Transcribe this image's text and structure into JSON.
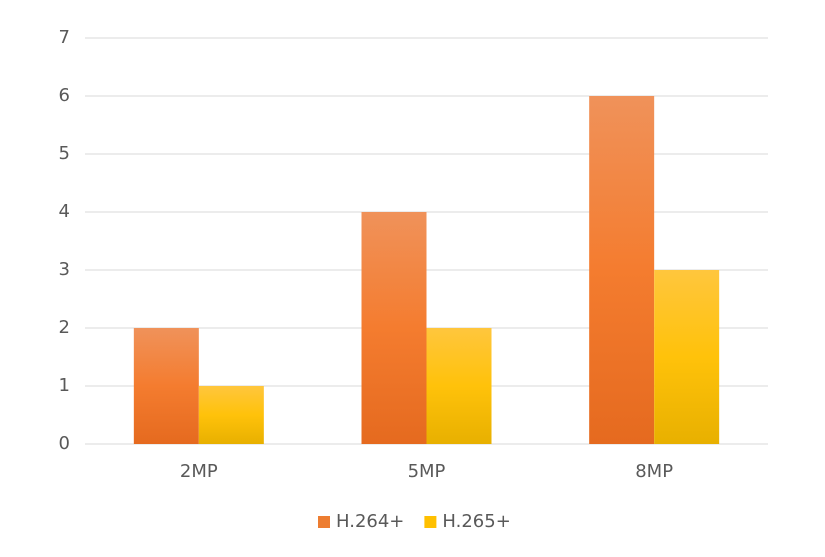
{
  "chart_data": {
    "type": "bar",
    "categories": [
      "2MP",
      "5MP",
      "8MP"
    ],
    "series": [
      {
        "name": "H.264+",
        "color": "#ed7d31",
        "values": [
          2,
          4,
          6
        ]
      },
      {
        "name": "H.265+",
        "color": "#ffc000",
        "values": [
          1,
          2,
          3
        ]
      }
    ],
    "ylim": [
      0,
      7
    ],
    "yticks": [
      0,
      1,
      2,
      3,
      4,
      5,
      6,
      7
    ],
    "grid": true,
    "legend": "bottom"
  }
}
